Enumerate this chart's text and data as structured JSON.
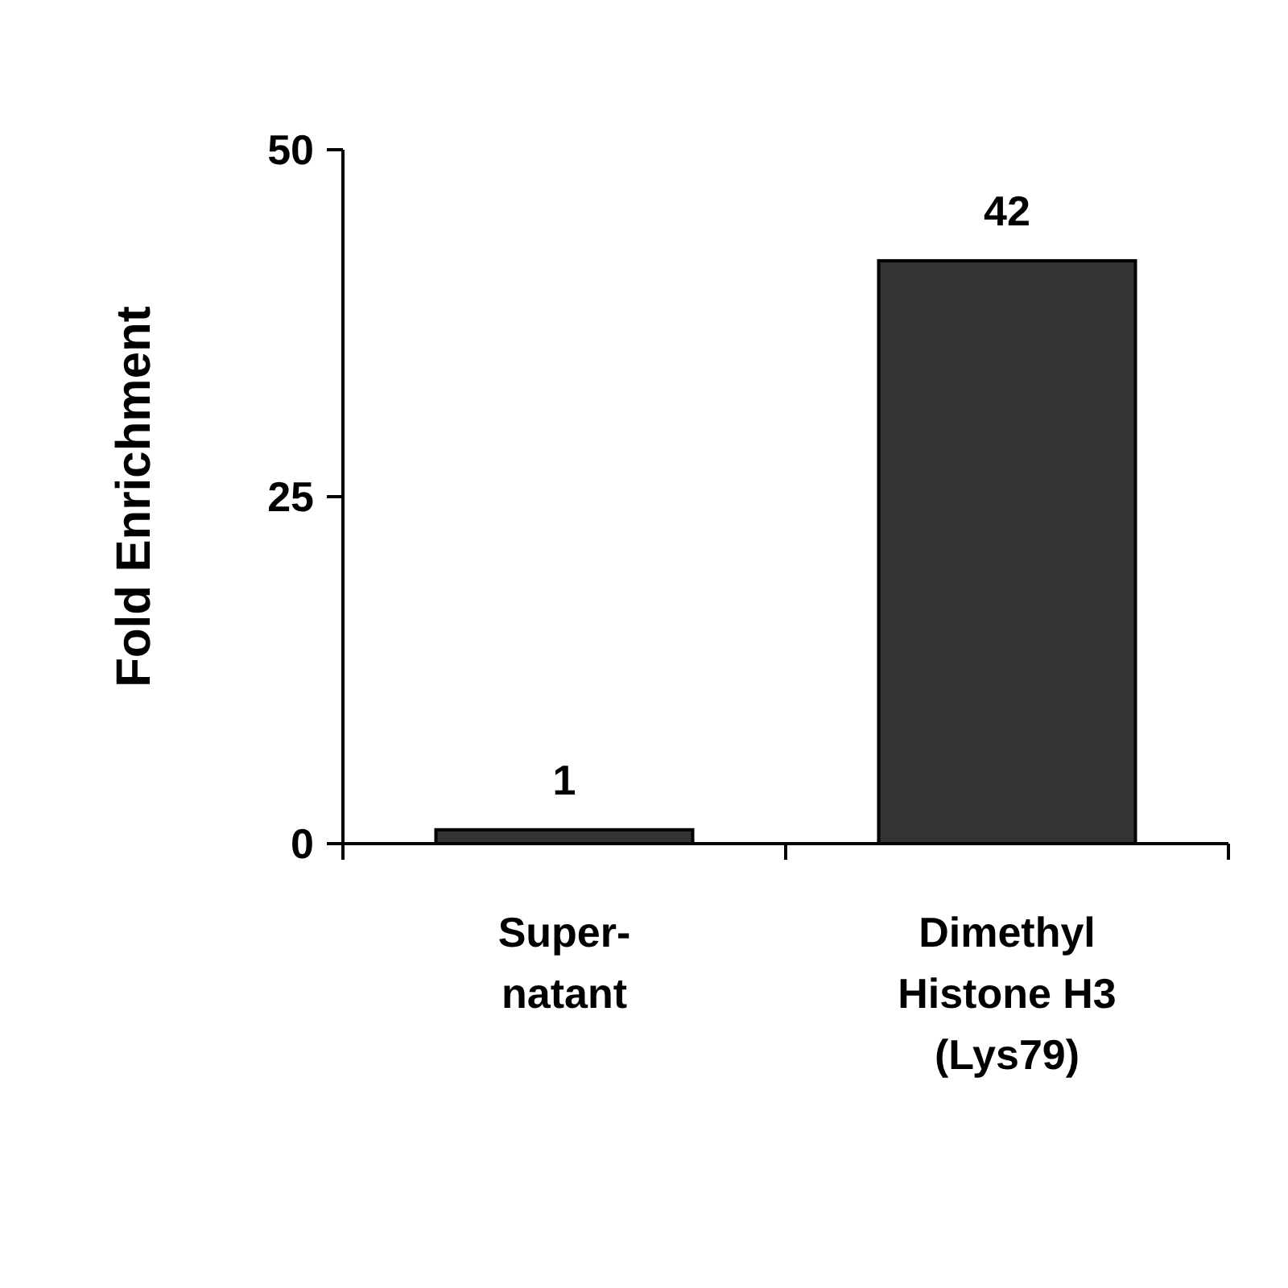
{
  "chart_data": {
    "type": "bar",
    "ylabel": "Fold Enrichment",
    "categories": [
      "Super-\nnatant",
      "Dimethyl\nHistone H3\n(Lys79)"
    ],
    "values": [
      1,
      42
    ],
    "color": "#333333",
    "ylim": [
      0,
      50
    ],
    "yticks": [
      0,
      25,
      50
    ],
    "data_labels": true,
    "grid": false
  }
}
